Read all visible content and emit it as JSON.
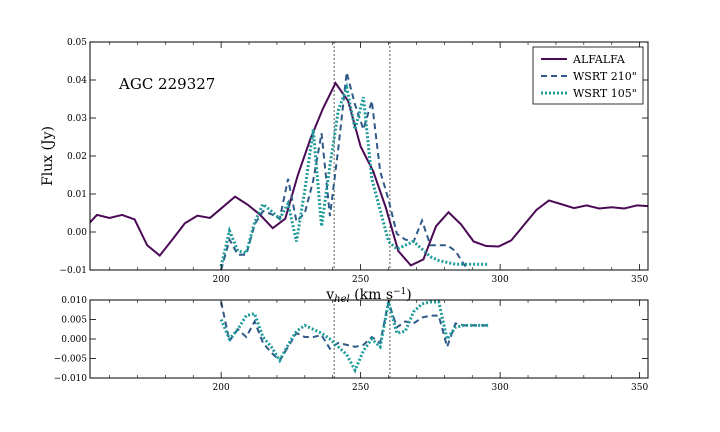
{
  "chart_data": [
    {
      "type": "line",
      "panel": "main",
      "annotation": "AGC 229327",
      "xlabel": "v_hel (km s⁻¹)",
      "ylabel": "Flux (Jy)",
      "xlim": [
        153,
        353
      ],
      "ylim": [
        -0.01,
        0.05
      ],
      "xticks": [
        "200",
        "250",
        "300",
        "350"
      ],
      "yticks": [
        "−0.01",
        "0.00",
        "0.01",
        "0.02",
        "0.03",
        "0.04",
        "0.05"
      ],
      "vlines": [
        240.5,
        260.5
      ],
      "legend_position": "top-right",
      "colors": {
        "ALFALFA": "#4b0a55",
        "WSRT 210\"": "#2f5a88",
        "WSRT 105\"": "#1f9a9a"
      },
      "series": [
        {
          "name": "ALFALFA",
          "x": [
            153,
            155.5,
            160,
            164.5,
            169,
            173.5,
            178,
            182.5,
            187,
            191.5,
            196,
            200.5,
            205,
            209.5,
            214,
            218.5,
            223,
            227.5,
            232,
            236.5,
            241,
            245.5,
            250,
            254.5,
            259,
            263.5,
            268,
            272.5,
            277,
            281.5,
            286,
            290.5,
            295,
            299.5,
            304,
            308.5,
            313,
            317.5,
            322,
            326.5,
            331,
            335.5,
            340,
            344.5,
            349,
            353
          ],
          "values": [
            0.0025,
            0.0045,
            0.0037,
            0.0045,
            0.0033,
            -0.0035,
            -0.0062,
            -0.002,
            0.0023,
            0.0043,
            0.0037,
            0.0065,
            0.0093,
            0.0072,
            0.0045,
            0.001,
            0.0035,
            0.015,
            0.0245,
            0.0325,
            0.0392,
            0.0345,
            0.0225,
            0.016,
            0.0065,
            -0.005,
            -0.0088,
            -0.0072,
            0.0015,
            0.0052,
            0.002,
            -0.0025,
            -0.0037,
            -0.0038,
            -0.0022,
            0.0018,
            0.0058,
            0.0083,
            0.0073,
            0.0063,
            0.007,
            0.0062,
            0.0065,
            0.0062,
            0.007,
            0.0068
          ]
        },
        {
          "name": "WSRT 210\"",
          "x": [
            200,
            203,
            206,
            209,
            212,
            215,
            218,
            221,
            224,
            227,
            230,
            233,
            236,
            239,
            242,
            245,
            248,
            251,
            254,
            257,
            260,
            263,
            266,
            269,
            272,
            275,
            278,
            281,
            284,
            287,
            290,
            293,
            296
          ],
          "values": [
            -0.01,
            -0.002,
            -0.006,
            -0.006,
            0.002,
            0.0055,
            0.0047,
            0.0035,
            0.014,
            0.0028,
            0.005,
            0.0135,
            0.026,
            0.0042,
            0.022,
            0.042,
            0.0335,
            0.027,
            0.0345,
            0.016,
            0.0085,
            -0.0005,
            -0.002,
            -0.0025,
            0.003,
            -0.0035,
            -0.0035,
            -0.0035,
            -0.005,
            -0.0085,
            -0.011,
            -0.011,
            -0.011
          ]
        },
        {
          "name": "WSRT 105\"",
          "x": [
            200,
            203,
            206,
            209,
            212,
            215,
            218,
            221,
            224,
            227,
            230,
            233,
            236,
            239,
            242,
            245,
            248,
            251,
            254,
            257,
            260,
            263,
            266,
            269,
            272,
            275,
            278,
            281,
            284,
            287,
            290,
            293,
            296
          ],
          "values": [
            -0.009,
            0.0003,
            -0.005,
            -0.0055,
            0.0025,
            0.0073,
            0.0055,
            0.0035,
            0.0075,
            -0.0025,
            0.011,
            0.027,
            0.0015,
            0.0175,
            0.032,
            0.038,
            0.027,
            0.0355,
            0.014,
            0.0058,
            -0.0025,
            -0.0045,
            -0.0035,
            -0.0025,
            -0.0045,
            -0.0065,
            -0.0075,
            -0.008,
            -0.0085,
            -0.0085,
            -0.0085,
            -0.0085,
            -0.0085
          ]
        }
      ]
    },
    {
      "type": "line",
      "panel": "residual",
      "xlim": [
        153,
        353
      ],
      "ylim": [
        -0.01,
        0.01
      ],
      "xticks": [
        "200",
        "250",
        "300",
        "350"
      ],
      "yticks": [
        "−0.010",
        "−0.005",
        "0.000",
        "0.005",
        "0.010"
      ],
      "vlines": [
        240.5,
        260.5
      ],
      "series": [
        {
          "name": "WSRT 210\"",
          "x": [
            200,
            203,
            206,
            209,
            212,
            215,
            218,
            221,
            224,
            227,
            230,
            233,
            236,
            239,
            242,
            245,
            248,
            251,
            254,
            257,
            260,
            263,
            266,
            269,
            272,
            275,
            278,
            281,
            284,
            287,
            290,
            293,
            296
          ],
          "values": [
            0.0095,
            -0.0005,
            0.0025,
            0.0005,
            0.0045,
            -0.001,
            -0.0035,
            -0.0055,
            -0.002,
            0.0015,
            0.0005,
            0.0005,
            0.001,
            -0.0025,
            -0.001,
            -0.0015,
            -0.002,
            -0.0015,
            0.0005,
            -0.001,
            0.0095,
            0.003,
            0.0045,
            0.004,
            0.0055,
            0.006,
            0.006,
            -0.002,
            0.004,
            0.0035,
            0.0035,
            0.0035,
            0.0035
          ]
        },
        {
          "name": "WSRT 105\"",
          "x": [
            200,
            203,
            206,
            209,
            212,
            215,
            218,
            221,
            224,
            227,
            230,
            233,
            236,
            239,
            242,
            245,
            248,
            251,
            254,
            257,
            260,
            263,
            266,
            269,
            272,
            275,
            278,
            281,
            284,
            287,
            290,
            293,
            296
          ],
          "values": [
            0.005,
            0.0,
            0.0025,
            0.006,
            0.0065,
            0.0005,
            -0.002,
            -0.0055,
            -0.0015,
            0.002,
            0.0035,
            0.0025,
            0.0015,
            0.0,
            -0.002,
            -0.004,
            -0.008,
            -0.003,
            0.0,
            -0.002,
            0.0095,
            0.0015,
            0.002,
            0.007,
            0.009,
            0.0095,
            0.0095,
            0.0,
            0.003,
            0.0035,
            0.0035,
            0.0035,
            0.0035
          ]
        }
      ]
    }
  ]
}
